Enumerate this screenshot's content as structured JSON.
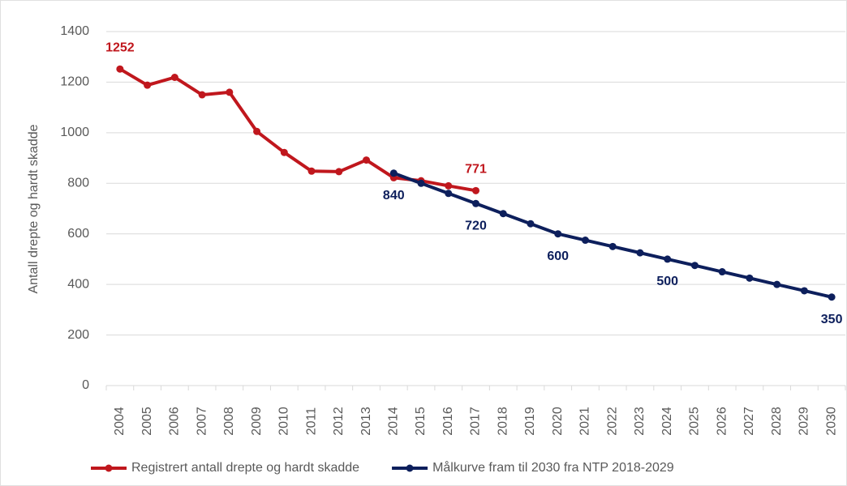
{
  "chart_data": {
    "type": "line",
    "y_label": "Antall drepte og hardt skadde",
    "categories": [
      "2004",
      "2005",
      "2006",
      "2007",
      "2008",
      "2009",
      "2010",
      "2011",
      "2012",
      "2013",
      "2014",
      "2015",
      "2016",
      "2017",
      "2018",
      "2019",
      "2020",
      "2021",
      "2022",
      "2023",
      "2024",
      "2025",
      "2026",
      "2027",
      "2028",
      "2029",
      "2030"
    ],
    "series": [
      {
        "name": "Registrert antall drepte og hardt skadde",
        "color": "#c0171d",
        "values": [
          1252,
          1188,
          1219,
          1150,
          1160,
          1005,
          922,
          848,
          846,
          892,
          822,
          810,
          790,
          771,
          null,
          null,
          null,
          null,
          null,
          null,
          null,
          null,
          null,
          null,
          null,
          null,
          null
        ],
        "value_labels": [
          "1252",
          null,
          null,
          null,
          null,
          null,
          null,
          null,
          null,
          null,
          null,
          null,
          null,
          "771",
          null,
          null,
          null,
          null,
          null,
          null,
          null,
          null,
          null,
          null,
          null,
          null,
          null
        ]
      },
      {
        "name": "Målkurve fram til 2030 fra NTP 2018-2029",
        "color": "#0d1f5c",
        "values": [
          null,
          null,
          null,
          null,
          null,
          null,
          null,
          null,
          null,
          null,
          840,
          800,
          760,
          720,
          680,
          640,
          600,
          575,
          550,
          525,
          500,
          475,
          450,
          425,
          400,
          375,
          350
        ],
        "value_labels": [
          null,
          null,
          null,
          null,
          null,
          null,
          null,
          null,
          null,
          null,
          "840",
          null,
          null,
          "720",
          null,
          null,
          "600",
          null,
          null,
          null,
          "500",
          null,
          null,
          null,
          null,
          null,
          "350"
        ]
      }
    ],
    "ylim": [
      0,
      1400
    ],
    "yticks": [
      0,
      200,
      400,
      600,
      800,
      1000,
      1200,
      1400
    ],
    "grid": true,
    "legend": "bottom"
  }
}
